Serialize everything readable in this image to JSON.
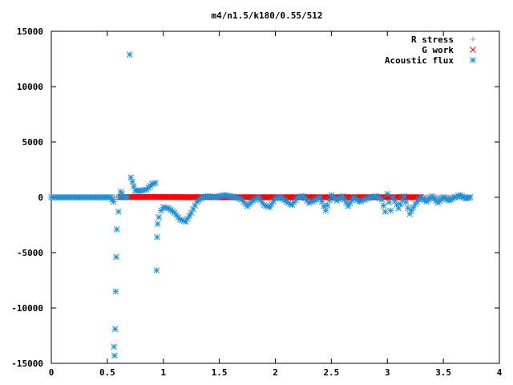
{
  "chart_data": {
    "type": "scatter",
    "title": "m4/n1.5/k180/0.55/512",
    "xlabel": "",
    "ylabel": "",
    "xlim": [
      0,
      4
    ],
    "ylim": [
      -15000,
      15000
    ],
    "x_ticks": [
      "0",
      "0.5",
      "1",
      "1.5",
      "2",
      "2.5",
      "3",
      "3.5",
      "4"
    ],
    "y_ticks": [
      "-15000",
      "-10000",
      "-5000",
      "0",
      "5000",
      "10000",
      "15000"
    ],
    "grid": false,
    "legend_position": "top-right",
    "series": [
      {
        "name": "R stress",
        "marker": "plus",
        "color": "#a0a0a0",
        "x": [
          0.05,
          0.3,
          0.55,
          0.7,
          1.0,
          1.5,
          2.0,
          2.5,
          3.0,
          3.5,
          3.73
        ],
        "y": [
          0,
          0,
          0,
          0,
          0,
          0,
          0,
          0,
          0,
          0,
          0
        ]
      },
      {
        "name": "G work",
        "marker": "cross",
        "color": "#ff0000",
        "x": [
          0.62,
          0.7,
          0.8,
          0.9,
          1.0,
          1.1,
          1.2,
          1.3,
          1.4,
          1.5,
          1.6,
          1.7,
          1.8,
          1.9,
          2.0,
          2.1,
          2.2,
          2.3,
          2.4,
          2.5,
          2.6,
          2.7,
          2.8,
          2.9,
          3.0,
          3.1,
          3.2,
          3.3
        ],
        "y": [
          20,
          30,
          40,
          40,
          30,
          30,
          20,
          20,
          20,
          10,
          10,
          10,
          10,
          10,
          10,
          10,
          10,
          10,
          10,
          10,
          10,
          10,
          10,
          10,
          10,
          10,
          10,
          10
        ]
      },
      {
        "name": "Acoustic flux",
        "marker": "star",
        "color": "#1e90d8",
        "x": [
          0.0,
          0.1,
          0.2,
          0.3,
          0.4,
          0.5,
          0.53,
          0.555,
          0.56,
          0.565,
          0.57,
          0.575,
          0.58,
          0.585,
          0.6,
          0.61,
          0.62,
          0.63,
          0.65,
          0.68,
          0.7,
          0.71,
          0.75,
          0.8,
          0.85,
          0.9,
          0.93,
          0.94,
          0.945,
          0.95,
          0.96,
          0.98,
          1.0,
          1.05,
          1.1,
          1.15,
          1.2,
          1.25,
          1.3,
          1.35,
          1.4,
          1.45,
          1.5,
          1.55,
          1.6,
          1.65,
          1.7,
          1.75,
          1.8,
          1.85,
          1.9,
          1.95,
          2.0,
          2.05,
          2.1,
          2.15,
          2.2,
          2.25,
          2.3,
          2.35,
          2.4,
          2.45,
          2.5,
          2.55,
          2.6,
          2.65,
          2.7,
          2.75,
          2.8,
          2.85,
          2.9,
          2.95,
          2.98,
          3.0,
          3.03,
          3.05,
          3.1,
          3.15,
          3.2,
          3.25,
          3.3,
          3.35,
          3.4,
          3.45,
          3.5,
          3.55,
          3.6,
          3.65,
          3.7,
          3.74
        ],
        "y": [
          0,
          0,
          0,
          0,
          0,
          0,
          0,
          -400,
          -13500,
          -14300,
          -11900,
          -8500,
          -5400,
          -2900,
          -1300,
          0,
          500,
          300,
          0,
          0,
          12900,
          1800,
          600,
          600,
          700,
          1200,
          1300,
          -6600,
          -3600,
          -2400,
          -1800,
          -1200,
          -900,
          -1000,
          -1400,
          -2000,
          -2200,
          -1400,
          -400,
          0,
          100,
          0,
          100,
          200,
          100,
          0,
          -200,
          -800,
          -300,
          0,
          -700,
          -900,
          -100,
          0,
          -400,
          -700,
          0,
          100,
          -500,
          -300,
          0,
          -1200,
          200,
          -300,
          100,
          -800,
          0,
          -400,
          -200,
          0,
          100,
          -200,
          -1300,
          300,
          -1200,
          0,
          -1000,
          100,
          -1500,
          -600,
          0,
          -400,
          100,
          -500,
          0,
          -300,
          0,
          200,
          -100,
          0
        ]
      }
    ]
  }
}
